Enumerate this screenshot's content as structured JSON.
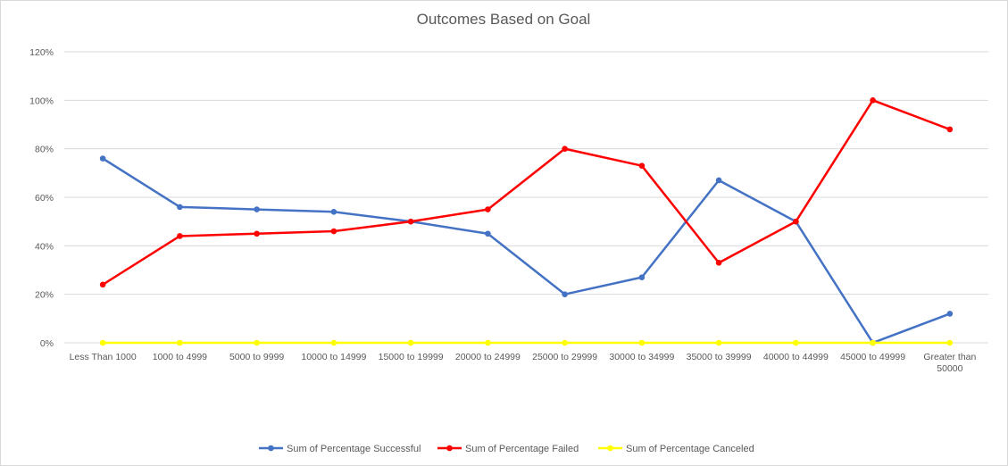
{
  "chart_data": {
    "type": "line",
    "title": "Outcomes Based on Goal",
    "xlabel": "",
    "ylabel": "",
    "ylim": [
      0,
      120
    ],
    "yticks": [
      "0%",
      "20%",
      "40%",
      "60%",
      "80%",
      "100%",
      "120%"
    ],
    "grid": true,
    "legend_position": "bottom",
    "categories": [
      [
        "Less Than 1000"
      ],
      [
        "1000 to 4999"
      ],
      [
        "5000 to 9999"
      ],
      [
        "10000 to 14999"
      ],
      [
        "15000 to 19999"
      ],
      [
        "20000 to 24999"
      ],
      [
        "25000 to 29999"
      ],
      [
        "30000 to 34999"
      ],
      [
        "35000 to 39999"
      ],
      [
        "40000 to 44999"
      ],
      [
        "45000 to 49999"
      ],
      [
        "Greater than",
        "50000"
      ]
    ],
    "series": [
      {
        "name": "Sum of Percentage Successful",
        "color": "#4472c4",
        "values": [
          76,
          56,
          55,
          54,
          50,
          45,
          20,
          27,
          67,
          50,
          0,
          12
        ]
      },
      {
        "name": "Sum of Percentage Failed",
        "color": "#ff0000",
        "values": [
          24,
          44,
          45,
          46,
          50,
          55,
          80,
          73,
          33,
          50,
          100,
          88
        ]
      },
      {
        "name": "Sum of Percentage Canceled",
        "color": "#ffff00",
        "values": [
          0,
          0,
          0,
          0,
          0,
          0,
          0,
          0,
          0,
          0,
          0,
          0
        ]
      }
    ]
  }
}
